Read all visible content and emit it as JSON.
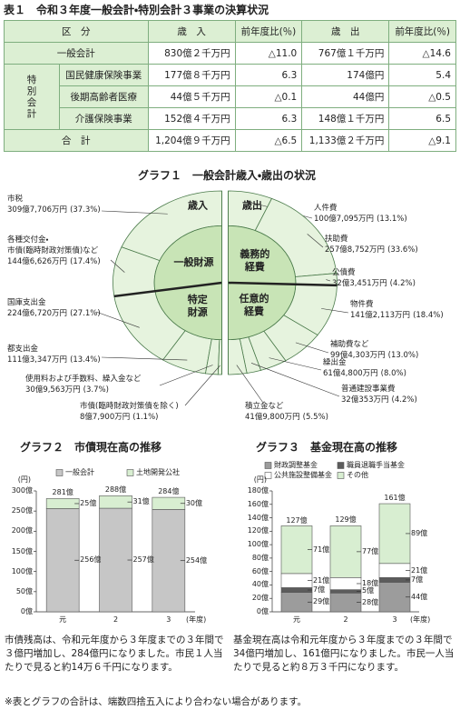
{
  "table": {
    "title": "表１　令和３年度一般会計・特別会計３事業の決算状況",
    "header": [
      "区　分",
      "歳　入",
      "前年度比(％)",
      "歳　出",
      "前年度比(％)"
    ],
    "group_label": "特別会計",
    "rows": [
      [
        "一般会計",
        "830億２千万円",
        "△11.0",
        "767億１千万円",
        "△14.6"
      ],
      [
        "国民健康保険事業",
        "177億８千万円",
        "6.3",
        "174億円",
        "5.4"
      ],
      [
        "後期高齢者医療",
        "44億５千万円",
        "△0.1",
        "44億円",
        "△0.5"
      ],
      [
        "介護保険事業",
        "152億４千万円",
        "6.3",
        "148億１千万円",
        "6.5"
      ],
      [
        "合　計",
        "1,204億９千万円",
        "△6.5",
        "1,133億２千万円",
        "△9.1"
      ]
    ]
  },
  "chart_data": [
    {
      "type": "donut",
      "title": "グラフ１　一般会計歳入・歳出の状況",
      "left": {
        "label": "歳入",
        "groups": [
          {
            "name": "一般財源",
            "categories": [
              "市税",
              "各種交付金・\n市債(臨時財政対策債)など"
            ],
            "amounts": [
              "309億7,706万円",
              "144億6,626万円"
            ],
            "values": [
              37.3,
              17.4
            ],
            "value_labels": [
              "(37.3%)",
              "(17.4%)"
            ]
          },
          {
            "name": "特定\n財源",
            "categories": [
              "国庫支出金",
              "都支出金",
              "使用料および手数料、繰入金など",
              "市債(臨時財政対策債を除く)"
            ],
            "amounts": [
              "224億6,720万円",
              "111億3,347万円",
              "30億9,563万円",
              "8億7,900万円"
            ],
            "values": [
              27.1,
              13.4,
              3.7,
              1.1
            ],
            "value_labels": [
              "(27.1%)",
              "(13.4%)",
              "(3.7%)",
              "(1.1%)"
            ]
          }
        ]
      },
      "right": {
        "label": "歳出",
        "groups": [
          {
            "name": "義務的\n経費",
            "categories": [
              "人件費",
              "扶助費",
              "公債費"
            ],
            "amounts": [
              "100億7,095万円",
              "257億8,752万円",
              "32億3,451万円"
            ],
            "values": [
              13.1,
              33.6,
              4.2
            ],
            "value_labels": [
              "(13.1%)",
              "(33.6%)",
              "(4.2%)"
            ]
          },
          {
            "name": "任意的\n経費",
            "categories": [
              "物件費",
              "補助費など",
              "繰出金",
              "普通建設事業費",
              "積立金など"
            ],
            "amounts": [
              "141億2,113万円",
              "99億4,303万円",
              "61億4,800万円",
              "32億353万円",
              "41億9,800万円"
            ],
            "values": [
              18.4,
              13.0,
              8.0,
              4.2,
              5.5
            ],
            "value_labels": [
              "(18.4%)",
              "(13.0%)",
              "(8.0%)",
              "(4.2%)",
              "(5.5%)"
            ]
          }
        ]
      }
    },
    {
      "type": "bar",
      "title": "グラフ２　市債現在高の推移",
      "unit": "(円)",
      "x_label": "(年度)",
      "categories": [
        "元",
        "2",
        "3"
      ],
      "series": [
        {
          "name": "一般会計",
          "color": "#c6c6c6",
          "values": [
            256,
            257,
            254
          ],
          "value_labels": [
            "256億",
            "257億",
            "254億"
          ]
        },
        {
          "name": "土地開発公社",
          "color": "#d8eed1",
          "values": [
            25,
            31,
            30
          ],
          "value_labels": [
            "25億",
            "31億",
            "30億"
          ]
        }
      ],
      "totals": [
        281,
        288,
        284
      ],
      "total_labels": [
        "281億",
        "288億",
        "284億"
      ],
      "ylim": [
        0,
        300
      ],
      "yticks": [
        {
          "value": 0,
          "label": "0億"
        },
        {
          "value": 50,
          "label": "50億"
        },
        {
          "value": 100,
          "label": "100億"
        },
        {
          "value": 150,
          "label": "150億"
        },
        {
          "value": 200,
          "label": "200億"
        },
        {
          "value": 250,
          "label": "250億"
        },
        {
          "value": 300,
          "label": "300億"
        }
      ],
      "caption": "市債残高は、令和元年度から３年度までの３年間で３億円増加し、284億円になりました。市民１人当たりで見ると約14万６千円になります。"
    },
    {
      "type": "bar",
      "title": "グラフ３　基金現在高の推移",
      "unit": "(円)",
      "x_label": "(年度)",
      "categories": [
        "元",
        "2",
        "3"
      ],
      "series": [
        {
          "name": "財政調整基金",
          "color": "#9c9c9c",
          "values": [
            29,
            28,
            44
          ],
          "value_labels": [
            "29億",
            "28億",
            "44億"
          ]
        },
        {
          "name": "職員退職手当基金",
          "color": "#5c5c5c",
          "values": [
            7,
            5,
            7
          ],
          "value_labels": [
            "7億",
            "5億",
            "7億"
          ]
        },
        {
          "name": "公共施設整備基金",
          "color": "#ffffff",
          "values": [
            21,
            18,
            21
          ],
          "value_labels": [
            "21億",
            "18億",
            "21億"
          ]
        },
        {
          "name": "その他",
          "color": "#d8eed1",
          "values": [
            71,
            77,
            89
          ],
          "value_labels": [
            "71億",
            "77億",
            "89億"
          ]
        }
      ],
      "totals": [
        127,
        129,
        161
      ],
      "total_labels": [
        "127億",
        "129億",
        "161億"
      ],
      "ylim": [
        0,
        180
      ],
      "yticks": [
        {
          "value": 0,
          "label": "0億"
        },
        {
          "value": 20,
          "label": "20億"
        },
        {
          "value": 40,
          "label": "40億"
        },
        {
          "value": 60,
          "label": "60億"
        },
        {
          "value": 80,
          "label": "80億"
        },
        {
          "value": 100,
          "label": "100億"
        },
        {
          "value": 120,
          "label": "120億"
        },
        {
          "value": 140,
          "label": "140億"
        },
        {
          "value": 160,
          "label": "160億"
        },
        {
          "value": 180,
          "label": "180億"
        }
      ],
      "caption": "基金現在高は令和元年度から３年度までの３年間で34億円増加し、161億円になりました。市民一人当たりで見ると約８万３千円になります。"
    }
  ],
  "footnote": "※表とグラフの合計は、端数四捨五入により合わない場合があります。"
}
